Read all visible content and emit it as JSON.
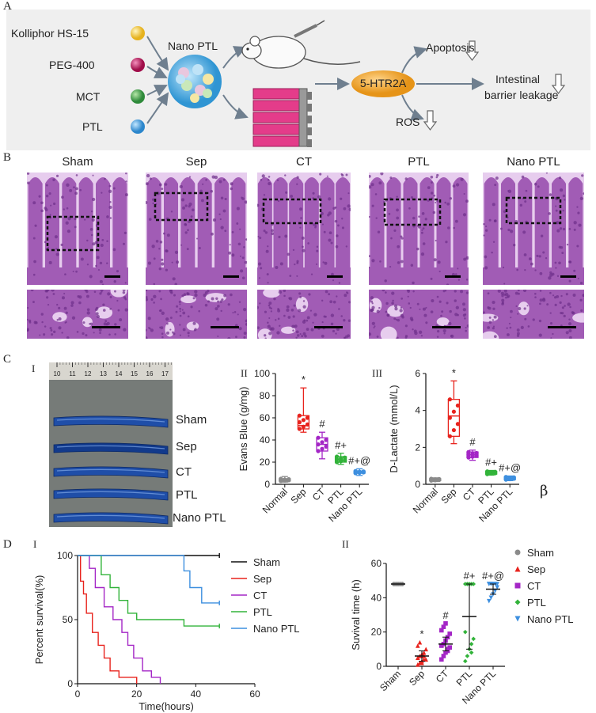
{
  "panel_a": {
    "letter": "A",
    "inputs": [
      {
        "label": "Kolliphor HS-15",
        "color": "#f2c940"
      },
      {
        "label": "PEG-400",
        "color": "#c0185e"
      },
      {
        "label": "MCT",
        "color": "#3f9a44"
      },
      {
        "label": "PTL",
        "color": "#3a9ad8"
      }
    ],
    "nano_label": "Nano PTL",
    "receptor_label": "5-HTR2A",
    "outcomes": {
      "apoptosis": "Apoptosis",
      "ros": "ROS",
      "leakage_line1": "Intestinal",
      "leakage_line2": "barrier leakage"
    },
    "colors": {
      "background": "#efefef",
      "receptor": "#f3a933",
      "cells": "#e43c8a",
      "sphere": "#3aa0dc"
    }
  },
  "panel_b": {
    "letter": "B",
    "groups": [
      "Sham",
      "Sep",
      "CT",
      "PTL",
      "Nano PTL"
    ],
    "colors": {
      "tissue": "#a15cb5",
      "light": "#e7cdee",
      "dark": "#6d2f8a"
    }
  },
  "panel_c": {
    "letter": "C",
    "sub_i": "I",
    "sub_ii": "II",
    "sub_iii": "III",
    "ruler_ticks": [
      "10",
      "11",
      "12",
      "13",
      "14",
      "15",
      "16",
      "17"
    ],
    "intestine_labels": [
      "Sham",
      "Sep",
      "CT",
      "PTL",
      "Nano PTL"
    ],
    "stray_symbol": "β",
    "colors": {
      "photo_bg": "#767b78",
      "intestine": "#1f4ea8"
    }
  },
  "panel_d": {
    "letter": "D",
    "sub_i": "I",
    "sub_ii": "II"
  },
  "chart_data": [
    {
      "type": "box",
      "id": "evans_blue",
      "ylabel": "Evans Blue (g/mg)",
      "categories": [
        "Normal",
        "Sep",
        "CT",
        "PTL",
        "Nano PTL"
      ],
      "ylim": [
        0,
        100
      ],
      "yticks": [
        0,
        20,
        40,
        60,
        80,
        100
      ],
      "boxes": [
        {
          "min": 2,
          "q1": 3,
          "median": 4,
          "q3": 5,
          "max": 7,
          "color": "#8a8a8a"
        },
        {
          "min": 47,
          "q1": 50,
          "median": 53,
          "q3": 62,
          "max": 87,
          "color": "#e8231d"
        },
        {
          "min": 23,
          "q1": 30,
          "median": 36,
          "q3": 42,
          "max": 47,
          "color": "#a426c6"
        },
        {
          "min": 18,
          "q1": 20,
          "median": 22,
          "q3": 25,
          "max": 28,
          "color": "#32b33a"
        },
        {
          "min": 8,
          "q1": 10,
          "median": 11,
          "q3": 12,
          "max": 14,
          "color": "#3d8fdf"
        }
      ],
      "annotations": [
        "*",
        "#",
        "#+",
        "#+@"
      ]
    },
    {
      "type": "box",
      "id": "d_lactate",
      "ylabel": "D-Lactate (mmol/L)",
      "categories": [
        "Normal",
        "Sep",
        "CT",
        "PTL",
        "Nano PTL"
      ],
      "ylim": [
        0,
        6
      ],
      "yticks": [
        0,
        2,
        4,
        6
      ],
      "boxes": [
        {
          "min": 0.15,
          "q1": 0.2,
          "median": 0.25,
          "q3": 0.3,
          "max": 0.35,
          "color": "#8a8a8a"
        },
        {
          "min": 2.2,
          "q1": 2.6,
          "median": 3.7,
          "q3": 4.6,
          "max": 5.6,
          "color": "#e8231d"
        },
        {
          "min": 1.3,
          "q1": 1.45,
          "median": 1.6,
          "q3": 1.75,
          "max": 1.85,
          "color": "#a426c6"
        },
        {
          "min": 0.5,
          "q1": 0.55,
          "median": 0.62,
          "q3": 0.7,
          "max": 0.75,
          "color": "#32b33a"
        },
        {
          "min": 0.2,
          "q1": 0.25,
          "median": 0.32,
          "q3": 0.4,
          "max": 0.45,
          "color": "#3d8fdf"
        }
      ],
      "annotations": [
        "*",
        "#",
        "#+",
        "#+@"
      ]
    },
    {
      "type": "line",
      "id": "survival_curve",
      "xlabel": "Time(hours)",
      "ylabel": "Percent survival(%)",
      "xlim": [
        0,
        60
      ],
      "ylim": [
        0,
        100
      ],
      "xticks": [
        0,
        20,
        40,
        60
      ],
      "yticks": [
        0,
        50,
        100
      ],
      "series": [
        {
          "name": "Sham",
          "color": "#111111",
          "points": [
            [
              0,
              100
            ],
            [
              48,
              100
            ]
          ]
        },
        {
          "name": "Sep",
          "color": "#e8231d",
          "points": [
            [
              0,
              100
            ],
            [
              1,
              100
            ],
            [
              1,
              80
            ],
            [
              2,
              80
            ],
            [
              2,
              70
            ],
            [
              3,
              70
            ],
            [
              3,
              55
            ],
            [
              5,
              55
            ],
            [
              5,
              40
            ],
            [
              7,
              40
            ],
            [
              7,
              30
            ],
            [
              9,
              30
            ],
            [
              9,
              20
            ],
            [
              11,
              20
            ],
            [
              11,
              10
            ],
            [
              14,
              10
            ],
            [
              14,
              5
            ],
            [
              20,
              5
            ],
            [
              20,
              0
            ]
          ]
        },
        {
          "name": "CT",
          "color": "#a426c6",
          "points": [
            [
              0,
              100
            ],
            [
              4,
              100
            ],
            [
              4,
              90
            ],
            [
              6,
              90
            ],
            [
              6,
              75
            ],
            [
              9,
              75
            ],
            [
              9,
              60
            ],
            [
              12,
              60
            ],
            [
              12,
              50
            ],
            [
              15,
              50
            ],
            [
              15,
              40
            ],
            [
              17,
              40
            ],
            [
              17,
              30
            ],
            [
              19,
              30
            ],
            [
              19,
              20
            ],
            [
              22,
              20
            ],
            [
              22,
              10
            ],
            [
              25,
              10
            ],
            [
              25,
              5
            ],
            [
              28,
              5
            ],
            [
              28,
              0
            ]
          ]
        },
        {
          "name": "PTL",
          "color": "#32b33a",
          "points": [
            [
              0,
              100
            ],
            [
              8,
              100
            ],
            [
              8,
              85
            ],
            [
              11,
              85
            ],
            [
              11,
              75
            ],
            [
              14,
              75
            ],
            [
              14,
              65
            ],
            [
              17,
              65
            ],
            [
              17,
              55
            ],
            [
              20,
              55
            ],
            [
              20,
              50
            ],
            [
              36,
              50
            ],
            [
              36,
              45
            ],
            [
              48,
              45
            ]
          ]
        },
        {
          "name": "Nano PTL",
          "color": "#3d8fdf",
          "points": [
            [
              0,
              100
            ],
            [
              36,
              100
            ],
            [
              36,
              88
            ],
            [
              38,
              88
            ],
            [
              38,
              75
            ],
            [
              42,
              75
            ],
            [
              42,
              63
            ],
            [
              48,
              63
            ]
          ]
        }
      ]
    },
    {
      "type": "scatter",
      "id": "survival_time",
      "ylabel": "Suvival time (h)",
      "categories": [
        "Sham",
        "Sep",
        "CT",
        "PTL",
        "Nano PTL"
      ],
      "ylim": [
        0,
        60
      ],
      "yticks": [
        0,
        20,
        40,
        60
      ],
      "groups": [
        {
          "mean": 48,
          "sd": 0,
          "color": "#8a8a8a",
          "shape": "circle",
          "points": [
            48,
            48,
            48,
            48,
            48,
            48,
            48,
            48,
            48,
            48
          ]
        },
        {
          "mean": 6,
          "sd": 3,
          "color": "#e8231d",
          "shape": "triangle",
          "points": [
            1,
            2,
            3,
            4,
            4,
            5,
            6,
            7,
            8,
            10,
            12,
            14,
            2,
            6
          ]
        },
        {
          "mean": 13,
          "sd": 4,
          "color": "#a426c6",
          "shape": "square",
          "points": [
            4,
            6,
            8,
            10,
            11,
            12,
            13,
            15,
            17,
            19,
            21,
            23,
            25,
            9
          ]
        },
        {
          "mean": 29,
          "sd": 19,
          "color": "#32b33a",
          "shape": "diamond",
          "points": [
            3,
            6,
            10,
            13,
            16,
            20,
            48,
            48,
            48,
            48,
            48,
            48,
            48,
            8
          ]
        },
        {
          "mean": 45,
          "sd": 3,
          "color": "#3d8fdf",
          "shape": "triangle-down",
          "points": [
            38,
            40,
            42,
            44,
            46,
            48,
            48,
            48,
            48,
            48,
            48,
            48
          ]
        }
      ],
      "annotations": [
        "*",
        "#",
        "#+",
        "#+@"
      ],
      "legend": [
        {
          "name": "Sham",
          "color": "#8a8a8a",
          "shape": "circle"
        },
        {
          "name": "Sep",
          "color": "#e8231d",
          "shape": "triangle"
        },
        {
          "name": "CT",
          "color": "#a426c6",
          "shape": "square"
        },
        {
          "name": "PTL",
          "color": "#32b33a",
          "shape": "diamond"
        },
        {
          "name": "Nano PTL",
          "color": "#3d8fdf",
          "shape": "triangle-down"
        }
      ]
    }
  ]
}
